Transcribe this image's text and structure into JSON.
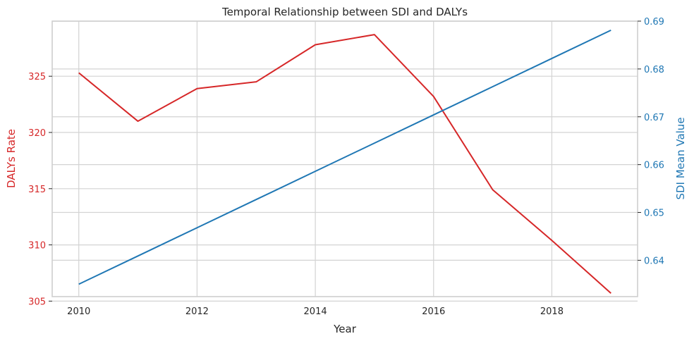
{
  "chart_data": {
    "type": "line",
    "title": "Temporal Relationship between SDI and DALYs",
    "xlabel": "Year",
    "x": [
      2010,
      2011,
      2012,
      2013,
      2014,
      2015,
      2016,
      2017,
      2018,
      2019
    ],
    "xlim": [
      2009.55,
      2019.45
    ],
    "xticks": [
      "2010",
      "2012",
      "2014",
      "2016",
      "2018"
    ],
    "grid": true,
    "series": [
      {
        "axis": "left",
        "ylabel": "DALYs Rate",
        "color": "#d62728",
        "values": [
          325.3,
          321.0,
          323.9,
          324.5,
          327.8,
          328.7,
          323.2,
          314.9,
          310.4,
          305.7
        ],
        "ylim": [
          305.4,
          329.9
        ],
        "yticks": [
          "305",
          "310",
          "315",
          "320",
          "325"
        ]
      },
      {
        "axis": "right",
        "ylabel": "SDI Mean Value",
        "color": "#1f77b4",
        "values": [
          0.635,
          0.6409,
          0.6468,
          0.6527,
          0.6586,
          0.6645,
          0.6704,
          0.6763,
          0.6822,
          0.6881
        ],
        "ylim": [
          0.6324,
          0.69
        ],
        "yticks": [
          "0.64",
          "0.65",
          "0.66",
          "0.67",
          "0.68",
          "0.69"
        ]
      }
    ]
  }
}
